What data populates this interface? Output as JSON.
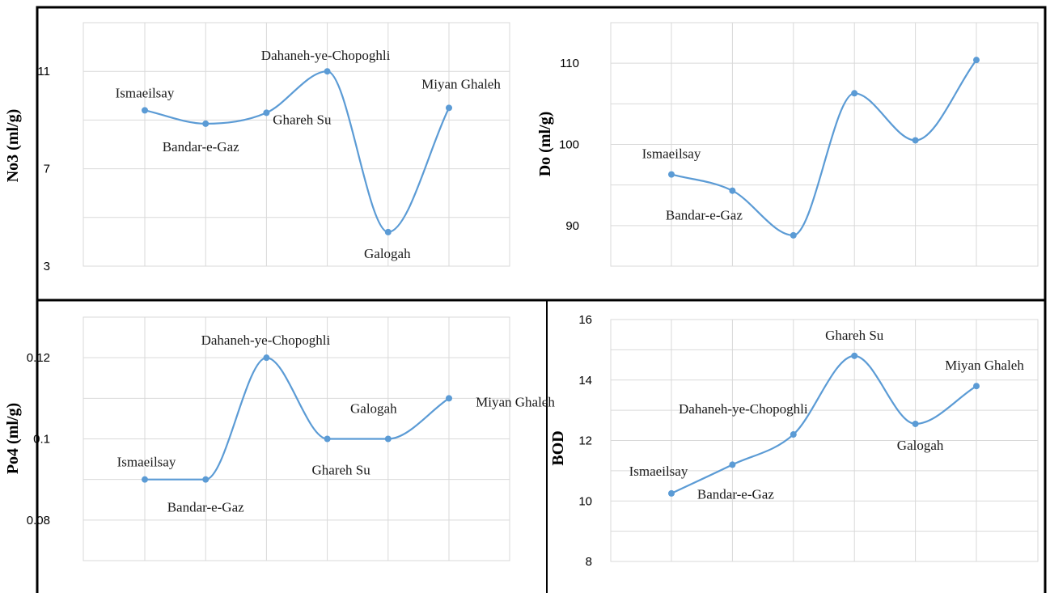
{
  "colors": {
    "series": "#5b9bd5",
    "grid": "#d9d9d9",
    "frame": "#000000"
  },
  "chart_data": [
    {
      "type": "line",
      "ylabel": "No3 (ml/g)",
      "categories": [
        "Ismaeilsay",
        "Bandar-e-Gaz",
        "Ghareh Su",
        "Dahaneh-ye-Chopoghli",
        "Galogah",
        "Miyan Ghaleh"
      ],
      "values": [
        9.4,
        8.85,
        9.3,
        11.0,
        4.4,
        9.5
      ],
      "point_labels": [
        "Ismaeilsay",
        "Bandar-e-Gaz",
        "Ghareh Su",
        "Dahaneh-ye-Chopoghli",
        "Galogah",
        "Miyan Ghaleh"
      ],
      "label_pos": [
        "above",
        "below",
        "below-right",
        "above",
        "below",
        "above"
      ],
      "ylim": [
        3,
        13
      ],
      "gridlines": [
        3,
        5,
        7,
        9,
        11,
        13
      ],
      "yticks": [
        "3",
        "7",
        "11"
      ],
      "grid": true
    },
    {
      "type": "line",
      "ylabel": "Do (ml/g)",
      "categories": [
        "Ismaeilsay",
        "Bandar-e-Gaz",
        "",
        "",
        "",
        ""
      ],
      "values": [
        96.3,
        94.3,
        88.8,
        106.3,
        100.5,
        110.4
      ],
      "point_labels": [
        "Ismaeilsay",
        "Bandar-e-Gaz",
        "",
        "",
        "",
        ""
      ],
      "label_pos": [
        "above",
        "below",
        "",
        "",
        "",
        ""
      ],
      "ylim": [
        85,
        115
      ],
      "gridlines": [
        85,
        90,
        95,
        100,
        105,
        110,
        115
      ],
      "yticks": [
        "90",
        "100",
        "110"
      ],
      "grid": true
    },
    {
      "type": "line",
      "ylabel": "Po4 (ml/g)",
      "categories": [
        "Ismaeilsay",
        "Bandar-e-Gaz",
        "Dahaneh-ye-Chopoghli",
        "Ghareh Su",
        "Galogah",
        "Miyan Ghaleh"
      ],
      "values": [
        0.09,
        0.09,
        0.12,
        0.1,
        0.1,
        0.11
      ],
      "point_labels": [
        "Ismaeilsay",
        "Bandar-e-Gaz",
        "Dahaneh-ye-Chopoghli",
        "Ghareh Su",
        "Galogah",
        "Miyan Ghaleh"
      ],
      "label_pos": [
        "above",
        "below",
        "above",
        "below",
        "above",
        "below-right"
      ],
      "ylim": [
        0.07,
        0.13
      ],
      "gridlines": [
        0.07,
        0.08,
        0.09,
        0.1,
        0.11,
        0.12,
        0.13
      ],
      "yticks": [
        "0.08",
        "0.1",
        "0.12"
      ],
      "grid": true
    },
    {
      "type": "line",
      "ylabel": "BOD",
      "categories": [
        "Ismaeilsay",
        "Bandar-e-Gaz",
        "Dahaneh-ye-Chopoghli",
        "Ghareh Su",
        "Galogah",
        "Miyan Ghaleh"
      ],
      "values": [
        10.25,
        11.2,
        12.2,
        14.8,
        12.55,
        13.8
      ],
      "point_labels": [
        "Ismaeilsay",
        "Bandar-e-Gaz",
        "Dahaneh-ye-Chopoghli",
        "Ghareh Su",
        "Galogah",
        "Miyan Ghaleh"
      ],
      "label_pos": [
        "above-left",
        "below-right",
        "above-left",
        "above",
        "below",
        "above"
      ],
      "ylim": [
        8,
        16
      ],
      "gridlines": [
        8,
        9,
        10,
        11,
        12,
        13,
        14,
        15,
        16
      ],
      "yticks": [
        "8",
        "10",
        "12",
        "14",
        "16"
      ],
      "grid": true
    }
  ]
}
